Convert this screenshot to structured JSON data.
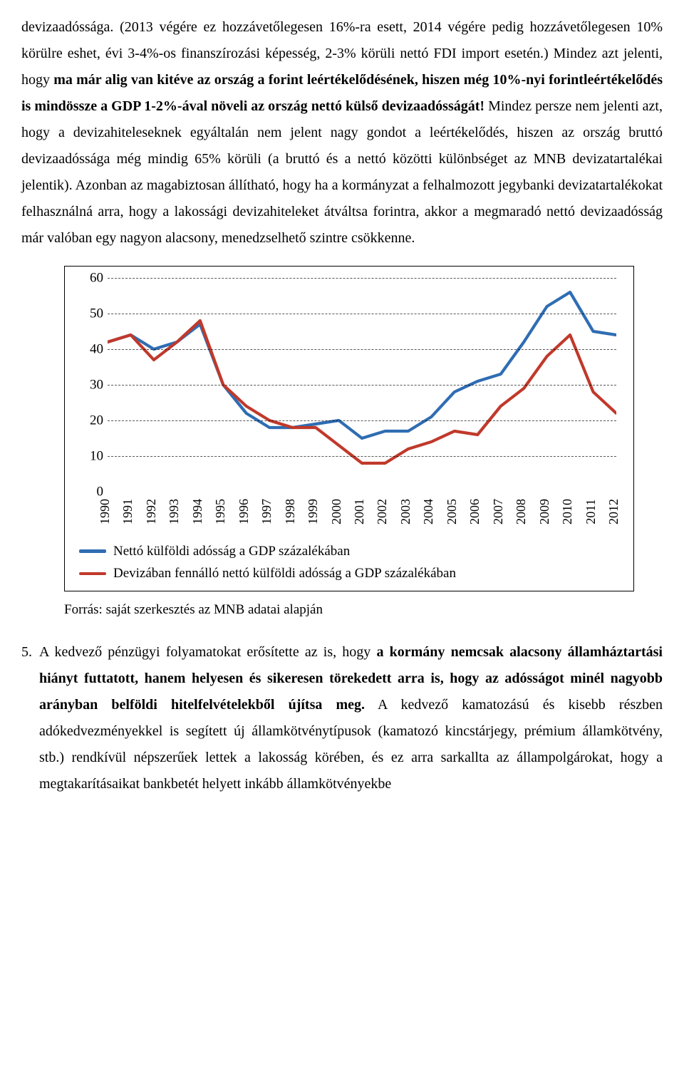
{
  "paragraphs": {
    "p1": "devizaadóssága. (2013 végére ez hozzávetőlegesen 16%-ra esett, 2014 végére pedig hozzávetőlegesen 10% körülre eshet, évi 3-4%-os finanszírozási képesség, 2-3% körüli nettó FDI import esetén.) Mindez azt jelenti, hogy ",
    "p1_bold1": "ma már alig van kitéve az ország a forint leértékelődésének, hiszen még 10%-nyi forintleértékelődés is mindössze a GDP 1-2%-ával növeli az ország nettó külső devizaadósságát!",
    "p1_cont": " Mindez persze nem jelenti azt, hogy a devizahiteleseknek egyáltalán nem jelent nagy gondot a leértékelődés, hiszen az ország bruttó devizaadóssága még mindig 65% körüli (a bruttó és a nettó közötti különbséget az MNB devizatartalékai jelentik). Azonban az magabiztosan állítható, hogy ha a kormányzat a felhalmozott jegybanki devizatartalékokat felhasználná arra, hogy a lakossági devizahiteleket átváltsa forintra, akkor a megmaradó nettó devizaadósság már valóban egy nagyon alacsony, menedzselhető szintre csökkenne.",
    "source": "Forrás: saját szerkesztés az MNB adatai alapján",
    "list_num": "5.",
    "p5_a": "A kedvező pénzügyi folyamatokat erősítette az is, hogy ",
    "p5_bold": "a kormány nemcsak alacsony államháztartási hiányt futtatott, hanem helyesen és sikeresen törekedett arra is, hogy az adósságot minél nagyobb arányban belföldi hitelfelvételekből újítsa meg.",
    "p5_b": " A kedvező kamatozású és kisebb részben adókedvezményekkel is segített új államkötvénytípusok (kamatozó kincstárjegy, prémium államkötvény, stb.) rendkívül népszerűek lettek a lakosság körében, és ez arra sarkallta az állampolgárokat, hogy a megtakarításaikat bankbetét helyett inkább államkötvényekbe"
  },
  "chart": {
    "type": "line",
    "categories": [
      "1990",
      "1991",
      "1992",
      "1993",
      "1994",
      "1995",
      "1996",
      "1997",
      "1998",
      "1999",
      "2000",
      "2001",
      "2002",
      "2003",
      "2004",
      "2005",
      "2006",
      "2007",
      "2008",
      "2009",
      "2010",
      "2011",
      "2012"
    ],
    "series": [
      {
        "name": "netto_kulfoldi",
        "label": "Nettó külföldi adósság a GDP százalékában",
        "color": "#2f6db3",
        "values": [
          42,
          44,
          40,
          42,
          47,
          30,
          22,
          18,
          18,
          19,
          20,
          15,
          17,
          17,
          21,
          28,
          31,
          33,
          42,
          52,
          56,
          45,
          44
        ]
      },
      {
        "name": "devizaban_netto",
        "label": "Devizában fennálló nettó külföldi adósság a GDP százalékában",
        "color": "#c0392b",
        "values": [
          42,
          44,
          37,
          42,
          48,
          30,
          24,
          20,
          18,
          18,
          13,
          8,
          8,
          12,
          14,
          17,
          16,
          24,
          29,
          38,
          44,
          28,
          22
        ]
      }
    ],
    "ylim": [
      0,
      60
    ],
    "ytick_step": 10,
    "background_color": "#ffffff",
    "grid_color": "#000000",
    "axis_fontsize": 19,
    "line_width": 4.2
  }
}
